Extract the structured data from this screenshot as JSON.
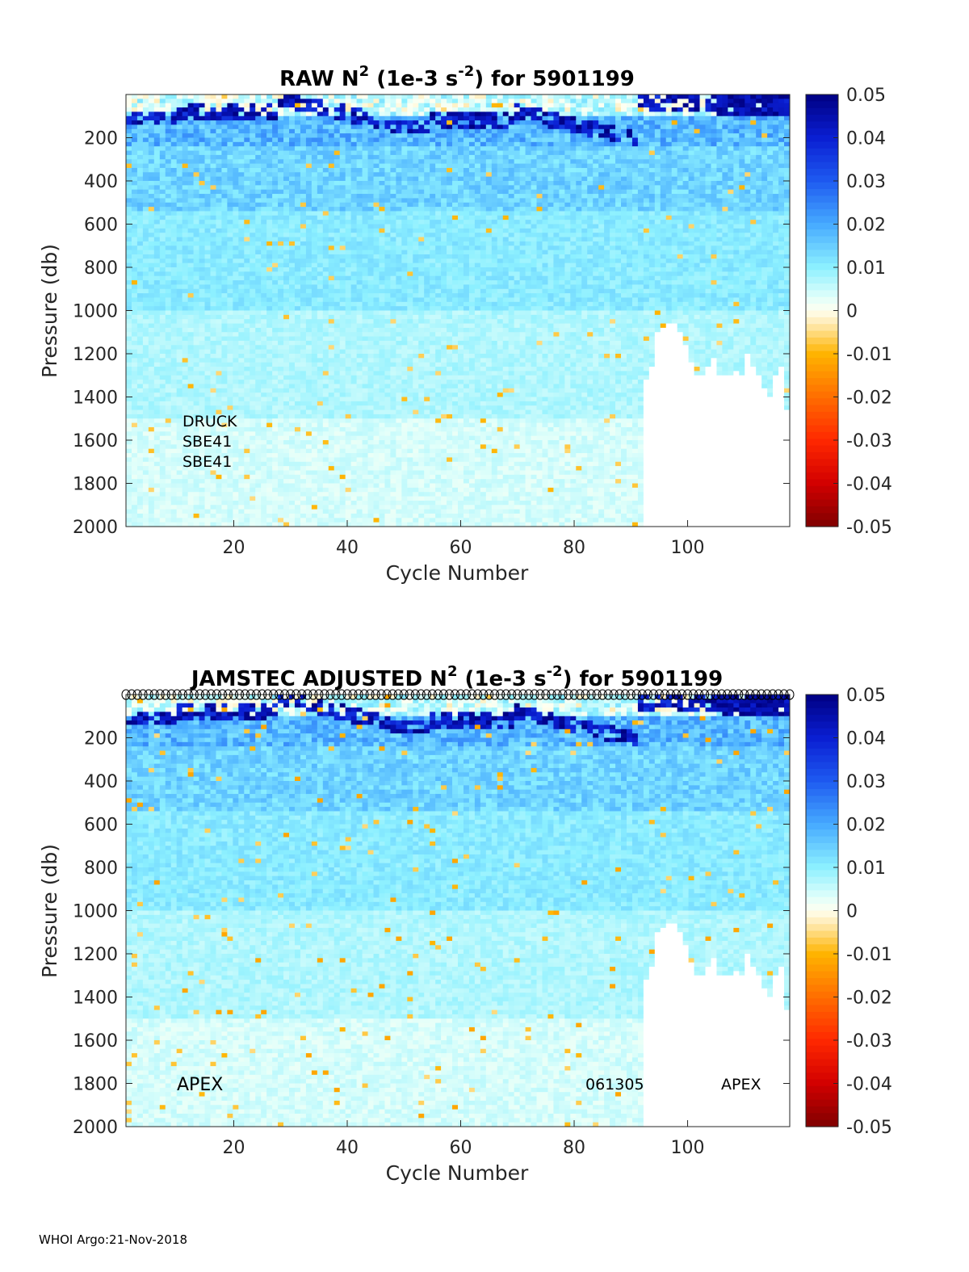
{
  "chart_data": [
    {
      "type": "heatmap",
      "title_prefix": "RAW N",
      "title_sup": "2",
      "title_mid": " (1e-3 s",
      "title_sup2": "-2",
      "title_suffix": ") for 5901199",
      "xlabel": "Cycle Number",
      "ylabel": "Pressure (db)",
      "xlim": [
        1,
        118
      ],
      "ylim": [
        2000,
        0
      ],
      "xticks": [
        "20",
        "40",
        "60",
        "80",
        "100"
      ],
      "xtick_values": [
        20,
        40,
        60,
        80,
        100
      ],
      "yticks": [
        "200",
        "400",
        "600",
        "800",
        "1000",
        "1200",
        "1400",
        "1600",
        "1800",
        "2000"
      ],
      "ytick_values": [
        200,
        400,
        600,
        800,
        1000,
        1200,
        1400,
        1600,
        1800,
        2000
      ],
      "colorbar": {
        "ticks": [
          "0.05",
          "0.04",
          "0.03",
          "0.02",
          "0.01",
          "0",
          "-0.01",
          "-0.02",
          "-0.03",
          "-0.04",
          "-0.05"
        ],
        "range": [
          -0.05,
          0.05
        ]
      },
      "annotations": [
        "DRUCK",
        "SBE41",
        "SBE41"
      ],
      "data_gap": {
        "from_cycle": 93,
        "depth_floor_db": 1100
      }
    },
    {
      "type": "heatmap",
      "title_prefix": "JAMSTEC  ADJUSTED N",
      "title_sup": "2",
      "title_mid": " (1e-3 s",
      "title_sup2": "-2",
      "title_suffix": ") for 5901199",
      "xlabel": "Cycle Number",
      "ylabel": "Pressure (db)",
      "xlim": [
        1,
        118
      ],
      "ylim": [
        2000,
        0
      ],
      "xticks": [
        "20",
        "40",
        "60",
        "80",
        "100"
      ],
      "xtick_values": [
        20,
        40,
        60,
        80,
        100
      ],
      "yticks": [
        "200",
        "400",
        "600",
        "800",
        "1000",
        "1200",
        "1400",
        "1600",
        "1800",
        "2000"
      ],
      "ytick_values": [
        200,
        400,
        600,
        800,
        1000,
        1200,
        1400,
        1600,
        1800,
        2000
      ],
      "colorbar": {
        "ticks": [
          "0.05",
          "0.04",
          "0.03",
          "0.02",
          "0.01",
          "0",
          "-0.01",
          "-0.02",
          "-0.03",
          "-0.04",
          "-0.05"
        ],
        "range": [
          -0.05,
          0.05
        ]
      },
      "annotations_left": "APEX",
      "annotations_right": [
        "061305",
        "APEX"
      ],
      "cycle_markers": "circles at top for every cycle 1-118",
      "data_gap": {
        "from_cycle": 93,
        "depth_floor_db": 1100
      }
    }
  ],
  "footer": "WHOI Argo:21-Nov-2018"
}
